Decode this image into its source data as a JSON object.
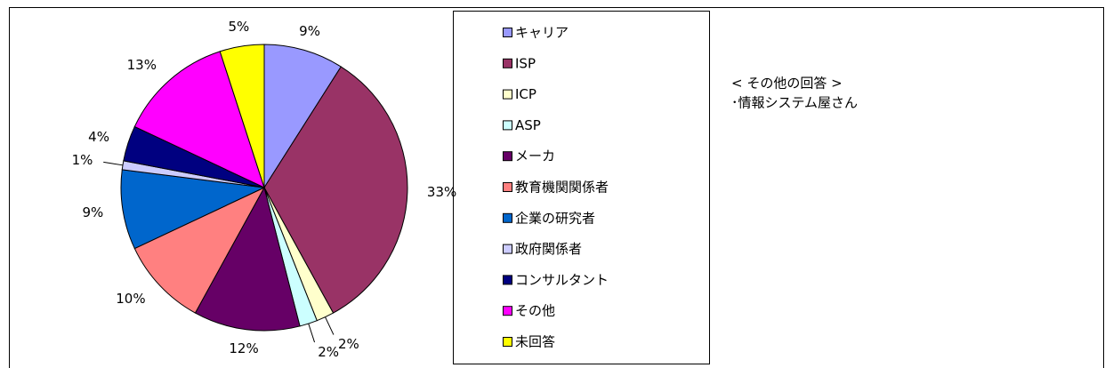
{
  "chart_data": {
    "type": "pie",
    "categories": [
      "キャリア",
      "ISP",
      "ICP",
      "ASP",
      "メーカ",
      "教育機関関係者",
      "企業の研究者",
      "政府関係者",
      "コンサルタント",
      "その他",
      "未回答"
    ],
    "values": [
      9,
      33,
      2,
      2,
      12,
      10,
      9,
      1,
      4,
      13,
      5
    ],
    "value_labels": [
      "9%",
      "33%",
      "2%",
      "2%",
      "12%",
      "10%",
      "9%",
      "1%",
      "4%",
      "13%",
      "5%"
    ],
    "colors": [
      "#9999ff",
      "#993366",
      "#ffffcc",
      "#ccffff",
      "#660066",
      "#ff8080",
      "#0066cc",
      "#ccccff",
      "#000080",
      "#ff00ff",
      "#ffff00"
    ],
    "annotations": [
      "< その他の回答 >",
      "･情報システム屋さん"
    ]
  }
}
